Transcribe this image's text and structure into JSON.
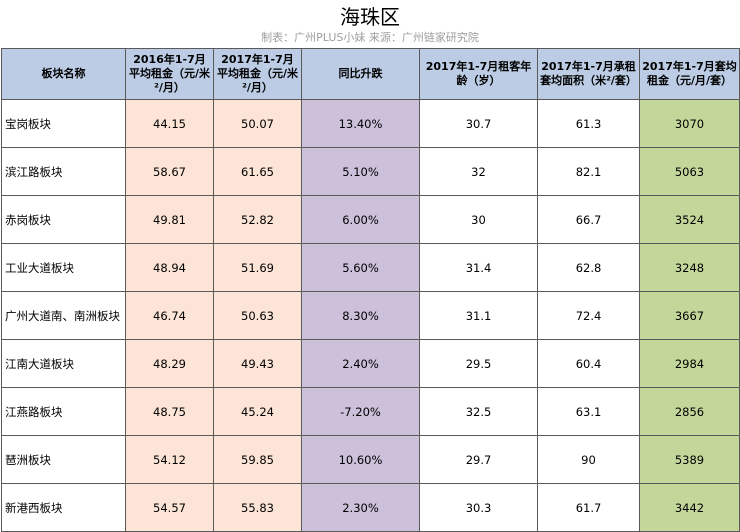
{
  "title": "海珠区",
  "subtitle": "制表：广州PLUS小妹  来源：广州链家研究院",
  "headers": [
    "板块名称",
    "2016年1-7月平均租金（元/米²/月）",
    "2017年1-7月平均租金（元/米²/月）",
    "同比升跌",
    "2017年1-7月租客年龄（岁）",
    "2017年1-7月承租套均面积（米²/套）",
    "2017年1-7月套均租金（元/月/套）"
  ],
  "rows": [
    [
      "宝岗板块",
      "44.15",
      "50.07",
      "13.40%",
      "30.7",
      "61.3",
      "3070"
    ],
    [
      "滨江路板块",
      "58.67",
      "61.65",
      "5.10%",
      "32",
      "82.1",
      "5063"
    ],
    [
      "赤岗板块",
      "49.81",
      "52.82",
      "6.00%",
      "30",
      "66.7",
      "3524"
    ],
    [
      "工业大道板块",
      "48.94",
      "51.69",
      "5.60%",
      "31.4",
      "62.8",
      "3248"
    ],
    [
      "广州大道南、南洲板块",
      "46.74",
      "50.63",
      "8.30%",
      "31.1",
      "72.4",
      "3667"
    ],
    [
      "江南大道板块",
      "48.29",
      "49.43",
      "2.40%",
      "29.5",
      "60.4",
      "2984"
    ],
    [
      "江燕路板块",
      "48.75",
      "45.24",
      "-7.20%",
      "32.5",
      "63.1",
      "2856"
    ],
    [
      "琶洲板块",
      "54.12",
      "59.85",
      "10.60%",
      "29.7",
      "90",
      "5389"
    ],
    [
      "新港西板块",
      "54.57",
      "55.83",
      "2.30%",
      "30.3",
      "61.7",
      "3442"
    ]
  ],
  "colors": {
    "header_bg": "#bccce5",
    "rent_bg": "#fce4d6",
    "change_bg": "#ccc0da",
    "avg_rent_bg": "#c4d79b"
  }
}
